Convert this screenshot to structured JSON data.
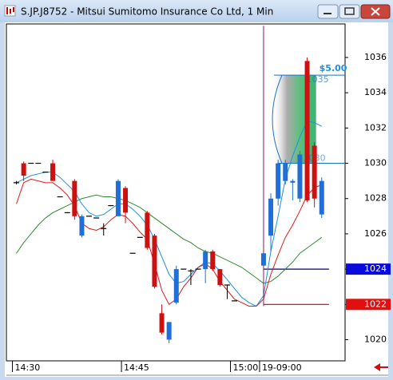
{
  "chart_data": {
    "type": "candlestick",
    "title": "S.JP.J8752 - Mitsui Sumitomo Insurance Co Ltd, 1 Min",
    "categories": [
      "14:30",
      null,
      null,
      null,
      null,
      null,
      null,
      null,
      null,
      null,
      null,
      null,
      null,
      null,
      null,
      "14:45",
      null,
      null,
      null,
      null,
      null,
      null,
      null,
      null,
      null,
      null,
      null,
      null,
      null,
      null,
      "15:00",
      null,
      null,
      null,
      "19-09:00",
      null,
      null,
      null,
      null,
      null,
      null,
      null,
      null
    ],
    "open": [
      1028.9,
      1030,
      1030,
      1030,
      1029.5,
      1030,
      1028.1,
      1027.2,
      1029,
      1025.9,
      1027,
      1026.9,
      1026.3,
      1027.6,
      1027,
      1028.6,
      1024.9,
      1025.8,
      1027.2,
      1025.9,
      1021.5,
      1020,
      1022.1,
      1024,
      1023.9,
      1024,
      1024,
      1025,
      1024,
      1023.1,
      1022.2,
      null,
      null,
      null,
      1024.2,
      1025.9,
      1028,
      1029,
      1028.9,
      1028,
      1035.8,
      1031,
      1027.1
    ],
    "high": [
      1029,
      1030.1,
      1030,
      1030,
      1029.5,
      1030.2,
      1028.1,
      1027.2,
      1029.1,
      1027.1,
      1027,
      1026.9,
      1026.6,
      1027.6,
      1029.1,
      1028.7,
      1024.9,
      1025.8,
      1027.3,
      1026,
      1022,
      1021,
      1024.2,
      1024,
      1024,
      1024,
      1025.1,
      1025.1,
      1024,
      1023.1,
      1022.2,
      null,
      null,
      null,
      1037.8,
      1028.3,
      1030.2,
      1030.2,
      1029.1,
      1030.7,
      1036,
      1031.2,
      1029.2
    ],
    "low": [
      1028.8,
      1029,
      1030,
      1030,
      1029.5,
      1029,
      1028.1,
      1027.2,
      1026.8,
      1025.8,
      1027,
      1026.9,
      1025.9,
      1027.6,
      1027,
      1026.6,
      1024.9,
      1025.8,
      1025.1,
      1022.9,
      1020.3,
      1019.8,
      1022,
      1024,
      1023.1,
      1024,
      1023.2,
      1023.9,
      1023,
      1022.3,
      1022.2,
      null,
      null,
      null,
      1021.9,
      1025,
      1027.6,
      1028.8,
      1027.9,
      1027.8,
      1027.8,
      1027.5,
      1026.9
    ],
    "close": [
      1028.9,
      1029.3,
      1030,
      1030,
      1029.5,
      1029,
      1028.1,
      1027.2,
      1027,
      1027,
      1027,
      1026.9,
      1026.3,
      1027.6,
      1029,
      1027.2,
      1024.9,
      1025.8,
      1025.2,
      1023,
      1020.4,
      1021,
      1024,
      1024,
      1023.9,
      1024,
      1025,
      1024,
      1023.1,
      1023.1,
      1022.2,
      null,
      null,
      null,
      1024.9,
      1028,
      1030,
      1030,
      1029,
      1030.5,
      1027.9,
      1028,
      1029
    ],
    "up_color": "#1f6fd6",
    "down_color": "#cc1111",
    "doji_color": "#000000",
    "series": [
      {
        "color": "#2e8b2e",
        "values": [
          1024.9,
          1025.5,
          1026.0,
          1026.5,
          1026.9,
          1027.2,
          1027.4,
          1027.6,
          1027.8,
          1028.0,
          1028.1,
          1028.2,
          1028.1,
          1028.1,
          1028.0,
          1027.9,
          1027.7,
          1027.5,
          1027.2,
          1026.9,
          1026.6,
          1026.3,
          1026.0,
          1025.7,
          1025.5,
          1025.2,
          1025.0,
          1024.9,
          1024.7,
          1024.5,
          1024.3,
          1024.1,
          1023.8,
          1023.5,
          1023.2,
          1023.3,
          1023.6,
          1024.0,
          1024.4,
          1024.9,
          1025.2,
          1025.5,
          1025.8
        ]
      },
      {
        "color": "#1e90e0",
        "values": [
          1028.9,
          1029.1,
          1029.3,
          1029.4,
          1029.5,
          1029.5,
          1029.2,
          1028.8,
          1028.4,
          1027.7,
          1027.2,
          1027.0,
          1027.1,
          1027.4,
          1027.7,
          1027.7,
          1027.4,
          1027.0,
          1026.5,
          1025.7,
          1024.7,
          1023.7,
          1023.2,
          1023.3,
          1023.7,
          1024.1,
          1024.4,
          1024.3,
          1023.9,
          1023.4,
          1022.9,
          1022.4,
          1022.1,
          1021.9,
          1022.5,
          1025.0,
          1027.0,
          1029.1,
          1030.4,
          1031.5,
          1032.4,
          1032.3,
          1032.1
        ]
      },
      {
        "color": "#dd1a1a",
        "values": [
          1027.7,
          1028.9,
          1029.1,
          1029.0,
          1028.9,
          1028.9,
          1028.6,
          1028.2,
          1027.6,
          1026.6,
          1026.3,
          1026.2,
          1026.4,
          1026.8,
          1027.1,
          1027.0,
          1026.6,
          1026.1,
          1025.7,
          1024.3,
          1022.8,
          1022.0,
          1022.3,
          1023.0,
          1023.5,
          1024.1,
          1024.3,
          1024.0,
          1023.3,
          1022.8,
          1022.3,
          1022.1,
          1021.9,
          1021.9,
          1022.3,
          1023.7,
          1024.8,
          1025.8,
          1026.5,
          1027.3,
          1028.2,
          1028.6,
          1028.8
        ]
      }
    ],
    "zone": {
      "top": 1035,
      "bottom": 1030,
      "label": "$5.00",
      "color": "#3cb371"
    },
    "lines": [
      {
        "value": 1030,
        "color": "#1e73be",
        "marker": false
      },
      {
        "value": 1024,
        "color": "#000080",
        "marker": true,
        "marker_color": "#0a0adc"
      },
      {
        "value": 1022,
        "color": "#cc0000",
        "marker": true,
        "marker_color": "#e01010"
      }
    ],
    "ylim": [
      1018.8,
      1037.9
    ],
    "yticks": [
      1020,
      1022,
      1024,
      1026,
      1028,
      1030,
      1032,
      1034,
      1036
    ]
  }
}
